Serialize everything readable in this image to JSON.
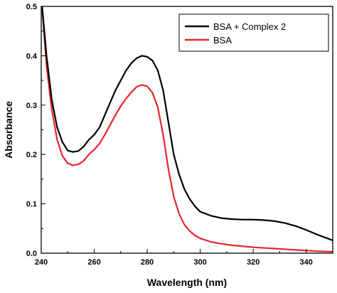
{
  "chart_data": {
    "type": "line",
    "title": "",
    "xlabel": "Wavelength (nm)",
    "ylabel": "Absorbance",
    "xlim": [
      240,
      350
    ],
    "ylim": [
      0,
      0.5
    ],
    "xticks": [
      240,
      260,
      280,
      300,
      320,
      340
    ],
    "yticks": [
      0.0,
      0.1,
      0.2,
      0.3,
      0.4,
      0.5
    ],
    "ytick_labels": [
      "0.0",
      "0.1",
      "0.2",
      "0.3",
      "0.4",
      "0.5"
    ],
    "grid": false,
    "legend_position": "top-right",
    "series": [
      {
        "name": "BSA + Complex 2",
        "color": "#000000",
        "points": [
          [
            240,
            0.52
          ],
          [
            242,
            0.4
          ],
          [
            244,
            0.31
          ],
          [
            246,
            0.255
          ],
          [
            248,
            0.225
          ],
          [
            250,
            0.208
          ],
          [
            252,
            0.205
          ],
          [
            254,
            0.207
          ],
          [
            256,
            0.216
          ],
          [
            258,
            0.23
          ],
          [
            260,
            0.24
          ],
          [
            262,
            0.255
          ],
          [
            264,
            0.28
          ],
          [
            266,
            0.305
          ],
          [
            268,
            0.33
          ],
          [
            270,
            0.35
          ],
          [
            272,
            0.37
          ],
          [
            274,
            0.385
          ],
          [
            276,
            0.395
          ],
          [
            278,
            0.4
          ],
          [
            280,
            0.398
          ],
          [
            282,
            0.39
          ],
          [
            284,
            0.37
          ],
          [
            286,
            0.33
          ],
          [
            288,
            0.265
          ],
          [
            290,
            0.2
          ],
          [
            292,
            0.16
          ],
          [
            294,
            0.13
          ],
          [
            296,
            0.11
          ],
          [
            298,
            0.095
          ],
          [
            300,
            0.084
          ],
          [
            304,
            0.076
          ],
          [
            308,
            0.071
          ],
          [
            312,
            0.069
          ],
          [
            316,
            0.068
          ],
          [
            320,
            0.068
          ],
          [
            324,
            0.067
          ],
          [
            328,
            0.065
          ],
          [
            332,
            0.061
          ],
          [
            336,
            0.055
          ],
          [
            340,
            0.047
          ],
          [
            344,
            0.038
          ],
          [
            348,
            0.03
          ],
          [
            350,
            0.026
          ]
        ]
      },
      {
        "name": "BSA",
        "color": "#e8262a",
        "points": [
          [
            240,
            0.52
          ],
          [
            242,
            0.38
          ],
          [
            244,
            0.29
          ],
          [
            246,
            0.23
          ],
          [
            248,
            0.197
          ],
          [
            250,
            0.182
          ],
          [
            252,
            0.178
          ],
          [
            254,
            0.18
          ],
          [
            256,
            0.187
          ],
          [
            258,
            0.2
          ],
          [
            260,
            0.21
          ],
          [
            262,
            0.222
          ],
          [
            264,
            0.24
          ],
          [
            266,
            0.26
          ],
          [
            268,
            0.28
          ],
          [
            270,
            0.298
          ],
          [
            272,
            0.313
          ],
          [
            274,
            0.326
          ],
          [
            276,
            0.337
          ],
          [
            278,
            0.341
          ],
          [
            280,
            0.338
          ],
          [
            282,
            0.325
          ],
          [
            284,
            0.295
          ],
          [
            286,
            0.24
          ],
          [
            288,
            0.17
          ],
          [
            290,
            0.115
          ],
          [
            292,
            0.08
          ],
          [
            294,
            0.058
          ],
          [
            296,
            0.045
          ],
          [
            298,
            0.036
          ],
          [
            300,
            0.03
          ],
          [
            304,
            0.023
          ],
          [
            308,
            0.019
          ],
          [
            312,
            0.016
          ],
          [
            316,
            0.014
          ],
          [
            320,
            0.012
          ],
          [
            326,
            0.01
          ],
          [
            332,
            0.008
          ],
          [
            338,
            0.006
          ],
          [
            344,
            0.004
          ],
          [
            350,
            0.003
          ]
        ]
      }
    ]
  }
}
